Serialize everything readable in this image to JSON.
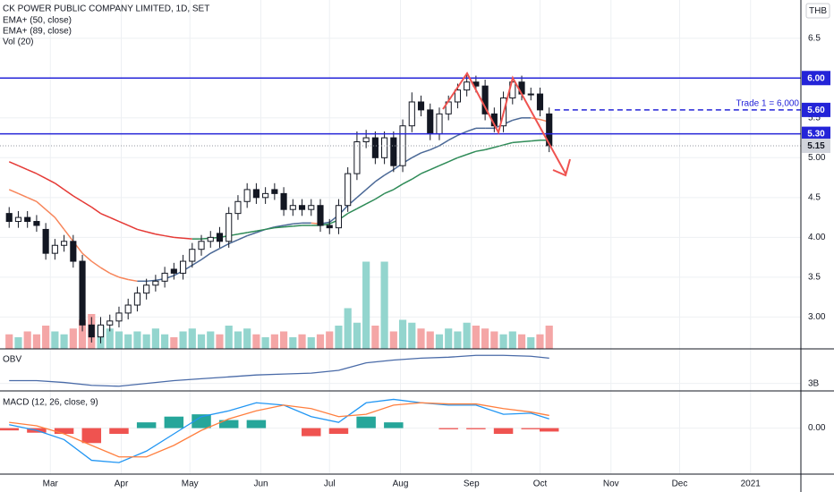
{
  "chart_data": [
    {
      "type": "candlestick",
      "title": "CK POWER PUBLIC COMPANY LIMITED, 1D, SET",
      "currency": "THB",
      "x": [
        43,
        47,
        51,
        55,
        59,
        63,
        67,
        71,
        75,
        79,
        83,
        87,
        91,
        95,
        99,
        103,
        107,
        111,
        115,
        119,
        123,
        127,
        131,
        135,
        139,
        143,
        147,
        151,
        155,
        159,
        163,
        167,
        171,
        175,
        179,
        183,
        187,
        191,
        195,
        199,
        203,
        207,
        211,
        215,
        219,
        223,
        227,
        231,
        235,
        239,
        243,
        247,
        251,
        255,
        259,
        263,
        267,
        271,
        275,
        279
      ],
      "open": [
        4.3,
        4.2,
        4.25,
        4.2,
        4.1,
        3.8,
        3.9,
        3.95,
        3.7,
        2.9,
        2.75,
        2.9,
        2.95,
        3.05,
        3.15,
        3.3,
        3.4,
        3.45,
        3.6,
        3.55,
        3.7,
        3.85,
        3.95,
        4.05,
        3.95,
        4.3,
        4.45,
        4.6,
        4.5,
        4.6,
        4.55,
        4.35,
        4.4,
        4.35,
        4.4,
        4.15,
        4.12,
        4.4,
        4.8,
        5.2,
        5.25,
        5.0,
        5.25,
        4.9,
        5.4,
        5.7,
        5.6,
        5.3,
        5.55,
        5.7,
        5.85,
        5.95,
        5.9,
        5.55,
        5.4,
        5.75,
        5.95,
        5.8,
        5.8,
        5.55
      ],
      "high": [
        4.38,
        4.33,
        4.33,
        4.28,
        4.18,
        3.98,
        4.03,
        4.03,
        3.78,
        3.0,
        3.0,
        3.03,
        3.13,
        3.23,
        3.38,
        3.48,
        3.53,
        3.63,
        3.68,
        3.78,
        3.93,
        4.03,
        4.08,
        4.13,
        4.38,
        4.53,
        4.68,
        4.68,
        4.63,
        4.68,
        4.63,
        4.48,
        4.48,
        4.48,
        4.48,
        4.23,
        4.48,
        4.88,
        5.33,
        5.35,
        5.33,
        5.33,
        5.33,
        5.48,
        5.82,
        5.78,
        5.68,
        5.63,
        5.78,
        5.93,
        6.05,
        6.03,
        5.98,
        5.63,
        5.83,
        6.0,
        6.03,
        5.88,
        5.88,
        5.63
      ],
      "low": [
        4.12,
        4.12,
        4.12,
        4.07,
        3.72,
        3.72,
        3.82,
        3.62,
        2.82,
        2.68,
        2.67,
        2.82,
        2.87,
        2.97,
        3.07,
        3.22,
        3.32,
        3.37,
        3.47,
        3.47,
        3.62,
        3.77,
        3.87,
        3.87,
        3.87,
        4.22,
        4.37,
        4.42,
        4.42,
        4.47,
        4.27,
        4.27,
        4.27,
        4.27,
        4.07,
        4.04,
        4.04,
        4.32,
        4.72,
        5.12,
        4.92,
        4.92,
        4.82,
        4.82,
        5.32,
        5.52,
        5.22,
        5.22,
        5.47,
        5.62,
        5.77,
        5.82,
        5.47,
        5.32,
        5.32,
        5.67,
        5.72,
        5.72,
        5.52,
        5.07
      ],
      "close": [
        4.2,
        4.25,
        4.2,
        4.15,
        3.8,
        3.9,
        3.95,
        3.7,
        2.9,
        2.75,
        2.9,
        2.95,
        3.05,
        3.15,
        3.3,
        3.4,
        3.45,
        3.55,
        3.55,
        3.7,
        3.85,
        3.95,
        4.0,
        3.95,
        4.3,
        4.45,
        4.6,
        4.5,
        4.55,
        4.55,
        4.35,
        4.4,
        4.35,
        4.4,
        4.15,
        4.12,
        4.4,
        4.8,
        5.2,
        5.25,
        5.0,
        5.25,
        4.9,
        5.4,
        5.7,
        5.6,
        5.3,
        5.55,
        5.7,
        5.85,
        5.95,
        5.9,
        5.55,
        5.4,
        5.75,
        5.95,
        5.8,
        5.8,
        5.6,
        5.15
      ],
      "up_color": "#ffffff",
      "down_color": "#131722",
      "series": [
        {
          "name": "EMA+ (50, close)",
          "colors": [
            "#f7855a",
            "#4a6896"
          ],
          "values": [
            4.6,
            4.55,
            4.5,
            4.45,
            4.35,
            4.25,
            4.1,
            3.95,
            3.8,
            3.7,
            3.62,
            3.55,
            3.5,
            3.47,
            3.45,
            3.45,
            3.46,
            3.48,
            3.52,
            3.58,
            3.65,
            3.72,
            3.8,
            3.86,
            3.92,
            3.97,
            4.02,
            4.06,
            4.1,
            4.13,
            4.15,
            4.17,
            4.18,
            4.18,
            4.17,
            4.19,
            4.28,
            4.4,
            4.5,
            4.6,
            4.7,
            4.78,
            4.85,
            4.93,
            5.0,
            5.06,
            5.1,
            5.15,
            5.22,
            5.28,
            5.33,
            5.37,
            5.37,
            5.37,
            5.42,
            5.47,
            5.5,
            5.5,
            5.48,
            5.45
          ]
        },
        {
          "name": "EMA+ (89, close)",
          "colors": [
            "#e53935",
            "#2e8b57"
          ],
          "values": [
            4.95,
            4.9,
            4.85,
            4.8,
            4.74,
            4.68,
            4.6,
            4.52,
            4.45,
            4.38,
            4.3,
            4.25,
            4.2,
            4.15,
            4.1,
            4.07,
            4.04,
            4.02,
            4.0,
            3.99,
            3.98,
            3.98,
            3.99,
            4.0,
            4.02,
            4.04,
            4.06,
            4.08,
            4.1,
            4.12,
            4.13,
            4.14,
            4.15,
            4.15,
            4.15,
            4.17,
            4.22,
            4.3,
            4.36,
            4.42,
            4.48,
            4.55,
            4.6,
            4.67,
            4.73,
            4.8,
            4.85,
            4.9,
            4.95,
            5.0,
            5.04,
            5.08,
            5.1,
            5.13,
            5.16,
            5.19,
            5.2,
            5.21,
            5.22,
            5.22
          ]
        },
        {
          "name": "Vol (20)",
          "axis": "y2",
          "colors": [
            "#f4a6a6",
            "#93d5ce"
          ],
          "values": [
            5,
            4,
            6,
            5,
            8,
            6,
            5,
            7,
            10,
            12,
            8,
            7,
            6,
            5,
            6,
            5,
            7,
            5,
            4,
            6,
            7,
            5,
            6,
            5,
            8,
            6,
            7,
            5,
            4,
            5,
            6,
            4,
            5,
            4,
            5,
            6,
            8,
            14,
            9,
            30,
            8,
            30,
            6,
            10,
            9,
            7,
            6,
            5,
            7,
            6,
            9,
            8,
            7,
            6,
            5,
            6,
            5,
            4,
            5,
            8
          ]
        }
      ],
      "xlim": [
        39,
        389
      ],
      "ylim": [
        2.6,
        6.98
      ],
      "y2lim": [
        0,
        120
      ],
      "yticks": [
        {
          "value": 3,
          "label": "3.00"
        },
        3.5,
        {
          "value": 4,
          "label": "4.00"
        },
        4.5,
        {
          "value": 5,
          "label": "5.00"
        },
        5.5,
        6.5
      ],
      "levels": [
        {
          "value": 6,
          "label": "6.00",
          "style": "solid",
          "color": "#2424d8"
        },
        {
          "value": 5.6,
          "label": "5.60",
          "style": "dashed",
          "color": "#2424d8",
          "note": "Trade 1 = 6,000"
        },
        {
          "value": 5.3,
          "label": "5.30",
          "style": "solid",
          "color": "#2424d8"
        }
      ],
      "last_price": 5.15,
      "grid": true
    },
    {
      "type": "line",
      "title": "OBV",
      "color": "#4a6ba8",
      "x": [
        43,
        55,
        67,
        79,
        91,
        103,
        115,
        127,
        139,
        151,
        163,
        175,
        187,
        199,
        211,
        223,
        235,
        247,
        259,
        271,
        279
      ],
      "values": [
        3.03,
        3.03,
        3.01,
        2.98,
        2.97,
        3.0,
        3.03,
        3.05,
        3.07,
        3.09,
        3.1,
        3.11,
        3.14,
        3.22,
        3.25,
        3.27,
        3.28,
        3.3,
        3.3,
        3.29,
        3.27
      ],
      "xlim": [
        39,
        389
      ],
      "ylim": [
        2.92,
        3.35
      ],
      "yticks": [
        {
          "value": 3,
          "label": "3B"
        }
      ]
    },
    {
      "type": "macd",
      "title": "MACD (12, 26, close, 9)",
      "x": [
        43,
        55,
        67,
        79,
        91,
        103,
        115,
        127,
        139,
        151,
        163,
        175,
        187,
        199,
        211,
        223,
        235,
        247,
        259,
        271,
        279
      ],
      "macd_line": {
        "color": "#2196f3",
        "values": [
          0.03,
          -0.02,
          -0.1,
          -0.28,
          -0.3,
          -0.2,
          -0.05,
          0.1,
          0.15,
          0.22,
          0.2,
          0.1,
          0.05,
          0.22,
          0.25,
          0.22,
          0.2,
          0.2,
          0.12,
          0.13,
          0.08
        ]
      },
      "signal_line": {
        "color": "#ff7f3f",
        "values": [
          0.05,
          0.02,
          -0.05,
          -0.15,
          -0.25,
          -0.25,
          -0.15,
          -0.02,
          0.08,
          0.15,
          0.2,
          0.17,
          0.1,
          0.12,
          0.2,
          0.22,
          0.21,
          0.21,
          0.17,
          0.14,
          0.11
        ]
      },
      "histogram": {
        "colors": [
          "#26a69a",
          "#ef5350"
        ],
        "values": [
          -0.02,
          -0.04,
          -0.05,
          -0.13,
          -0.05,
          0.05,
          0.1,
          0.12,
          0.07,
          0.07,
          0.0,
          -0.07,
          -0.05,
          0.1,
          0.05,
          0.0,
          -0.01,
          -0.01,
          -0.05,
          -0.01,
          -0.03
        ]
      },
      "xlim": [
        39,
        389
      ],
      "ylim": [
        -0.4,
        0.3
      ],
      "yticks": [
        {
          "value": 0,
          "label": "0.00"
        }
      ],
      "xticks": [
        {
          "value": 61,
          "label": "Mar"
        },
        {
          "value": 92,
          "label": "Apr"
        },
        {
          "value": 122,
          "label": "May"
        },
        {
          "value": 153,
          "label": "Jun"
        },
        {
          "value": 183,
          "label": "Jul"
        },
        {
          "value": 214,
          "label": "Aug"
        },
        {
          "value": 245,
          "label": "Sep"
        },
        {
          "value": 275,
          "label": "Oct"
        },
        {
          "value": 306,
          "label": "Nov"
        },
        {
          "value": 336,
          "label": "Dec"
        },
        {
          "value": 367,
          "label": "2021"
        }
      ]
    }
  ]
}
